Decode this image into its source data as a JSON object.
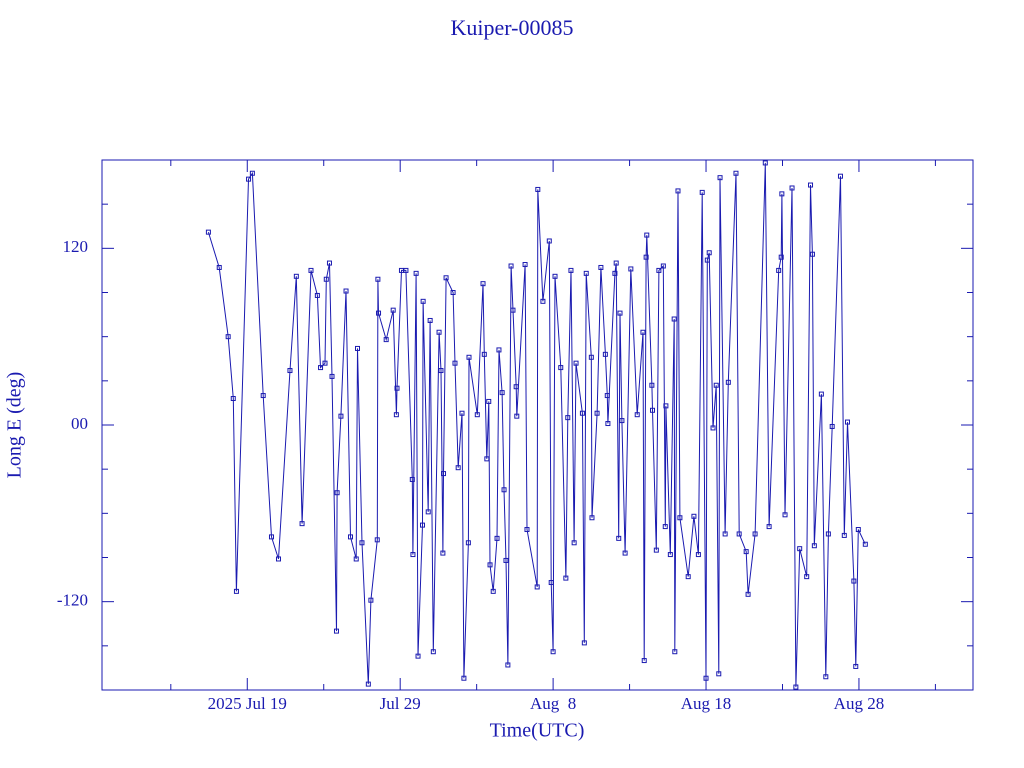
{
  "chart_data": {
    "type": "line",
    "title": "Kuiper-00085",
    "xlabel": "Time(UTC)",
    "ylabel": "Long E (deg)",
    "color": "#1a1ab0",
    "xlim": [
      "2025-07-09T12:00",
      "2025-09-04T11:00"
    ],
    "xticks": [
      {
        "value": "2025-07-19",
        "label": "2025 Jul 19"
      },
      {
        "value": "2025-07-29",
        "label": "Jul 29"
      },
      {
        "value": "2025-08-08",
        "label": "Aug  8"
      },
      {
        "value": "2025-08-18",
        "label": "Aug 18"
      },
      {
        "value": "2025-08-28",
        "label": "Aug 28"
      }
    ],
    "xminor": [
      "2025-07-14",
      "2025-07-24",
      "2025-08-03",
      "2025-08-13",
      "2025-08-23",
      "2025-09-02"
    ],
    "ylim": [
      -180,
      180
    ],
    "yticks": [
      -120,
      {
        "value": 0,
        "label": "00"
      },
      120
    ],
    "yminor": [
      -150,
      -90,
      -60,
      -30,
      30,
      60,
      90,
      150
    ],
    "x": [
      "2025-07-16T11:00",
      "2025-07-17T04:00",
      "2025-07-17T18:00",
      "2025-07-18T02:00",
      "2025-07-18T07:00",
      "2025-07-19T02:00",
      "2025-07-19T08:00",
      "2025-07-20T01:00",
      "2025-07-20T14:00",
      "2025-07-21T01:00",
      "2025-07-21T19:00",
      "2025-07-22T05:00",
      "2025-07-22T14:00",
      "2025-07-23T04:00",
      "2025-07-23T14:00",
      "2025-07-23T19:00",
      "2025-07-24T02:00",
      "2025-07-24T04:00",
      "2025-07-24T09:00",
      "2025-07-24T13:00",
      "2025-07-24T20:00",
      "2025-07-24T21:00",
      "2025-07-25T03:00",
      "2025-07-25T11:00",
      "2025-07-25T18:00",
      "2025-07-26T03:00",
      "2025-07-26T05:00",
      "2025-07-26T12:00",
      "2025-07-26T22:00",
      "2025-07-27T02:00",
      "2025-07-27T12:00",
      "2025-07-27T13:00",
      "2025-07-27T14:00",
      "2025-07-28T02:00",
      "2025-07-28T13:00",
      "2025-07-28T18:00",
      "2025-07-28T19:00",
      "2025-07-29T02:00",
      "2025-07-29T09:00",
      "2025-07-29T19:00",
      "2025-07-29T20:00",
      "2025-07-30T01:00",
      "2025-07-30T04:00",
      "2025-07-30T11:00",
      "2025-07-30T12:00",
      "2025-07-30T20:00",
      "2025-07-30T23:00",
      "2025-07-31T04:00",
      "2025-07-31T13:00",
      "2025-07-31T16:00",
      "2025-07-31T19:00",
      "2025-07-31T20:00",
      "2025-08-01T00:00",
      "2025-08-01T11:00",
      "2025-08-01T14:00",
      "2025-08-01T19:00",
      "2025-08-02T01:00",
      "2025-08-02T04:00",
      "2025-08-02T11:00",
      "2025-08-02T12:00",
      "2025-08-03T01:00",
      "2025-08-03T10:00",
      "2025-08-03T12:00",
      "2025-08-03T16:00",
      "2025-08-03T19:00",
      "2025-08-03T21:00",
      "2025-08-04T02:00",
      "2025-08-04T08:00",
      "2025-08-04T11:00",
      "2025-08-04T16:00",
      "2025-08-04T19:00",
      "2025-08-04T22:00",
      "2025-08-05T01:00",
      "2025-08-05T06:00",
      "2025-08-05T09:00",
      "2025-08-05T14:00",
      "2025-08-05T15:00",
      "2025-08-06T04:00",
      "2025-08-06T07:00",
      "2025-08-06T23:00",
      "2025-08-07T00:00",
      "2025-08-07T08:00",
      "2025-08-07T18:00",
      "2025-08-07T21:00",
      "2025-08-08T00:00",
      "2025-08-08T03:00",
      "2025-08-08T12:00",
      "2025-08-08T20:00",
      "2025-08-08T23:00",
      "2025-08-09T04:00",
      "2025-08-09T09:00",
      "2025-08-09T12:00",
      "2025-08-09T22:00",
      "2025-08-10T01:00",
      "2025-08-10T04:00",
      "2025-08-10T12:00",
      "2025-08-10T13:00",
      "2025-08-10T21:00",
      "2025-08-11T03:00",
      "2025-08-11T10:00",
      "2025-08-11T13:00",
      "2025-08-11T14:00",
      "2025-08-12T01:00",
      "2025-08-12T03:00",
      "2025-08-12T07:00",
      "2025-08-12T09:00",
      "2025-08-12T12:00",
      "2025-08-12T17:00",
      "2025-08-13T02:00",
      "2025-08-13T12:00",
      "2025-08-13T21:00",
      "2025-08-13T23:00",
      "2025-08-14T02:00",
      "2025-08-14T03:00",
      "2025-08-14T11:00",
      "2025-08-14T12:00",
      "2025-08-14T18:00",
      "2025-08-14T22:00",
      "2025-08-15T05:00",
      "2025-08-15T08:00",
      "2025-08-15T09:00",
      "2025-08-15T16:00",
      "2025-08-15T22:00",
      "2025-08-15T23:00",
      "2025-08-16T04:00",
      "2025-08-16T07:00",
      "2025-08-16T20:00",
      "2025-08-17T05:00",
      "2025-08-17T12:00",
      "2025-08-17T18:00",
      "2025-08-18T00:00",
      "2025-08-18T02:00",
      "2025-08-18T05:00",
      "2025-08-18T11:00",
      "2025-08-18T16:00",
      "2025-08-18T20:00",
      "2025-08-18T22:00",
      "2025-08-19T06:00",
      "2025-08-19T11:00",
      "2025-08-19T23:00",
      "2025-08-20T04:00",
      "2025-08-20T15:00",
      "2025-08-20T18:00",
      "2025-08-21T05:00",
      "2025-08-21T21:00",
      "2025-08-22T03:00",
      "2025-08-22T18:00",
      "2025-08-22T22:00",
      "2025-08-22T23:00",
      "2025-08-23T04:00",
      "2025-08-23T15:00",
      "2025-08-23T21:00",
      "2025-08-24T03:00",
      "2025-08-24T14:00",
      "2025-08-24T20:00",
      "2025-08-24T23:00",
      "2025-08-25T02:00",
      "2025-08-25T13:00",
      "2025-08-25T20:00",
      "2025-08-26T00:00",
      "2025-08-26T06:00",
      "2025-08-26T19:00",
      "2025-08-27T01:00",
      "2025-08-27T06:00",
      "2025-08-27T16:00",
      "2025-08-27T19:00",
      "2025-08-27T23:00",
      "2025-08-28T10:00"
    ],
    "values": [
      131,
      107,
      60,
      18,
      -113,
      167,
      171,
      20,
      -76,
      -91,
      37,
      101,
      -67,
      105,
      88,
      39,
      42,
      99,
      110,
      33,
      -140,
      -46,
      6,
      91,
      -76,
      -91,
      52,
      -80,
      -176,
      -119,
      -78,
      99,
      76,
      58,
      78,
      7,
      25,
      105,
      105,
      -37,
      -88,
      103,
      -157,
      -68,
      84,
      -59,
      71,
      -154,
      63,
      37,
      -87,
      -33,
      100,
      90,
      42,
      -29,
      8,
      -172,
      -80,
      46,
      7,
      96,
      48,
      -23,
      16,
      -95,
      -113,
      -77,
      51,
      22,
      -44,
      -92,
      -163,
      108,
      78,
      26,
      6,
      109,
      -71,
      -110,
      160,
      84,
      125,
      -107,
      -154,
      101,
      39,
      -104,
      5,
      105,
      -80,
      42,
      8,
      -148,
      103,
      46,
      -63,
      8,
      107,
      48,
      20,
      1,
      103,
      110,
      -77,
      76,
      3,
      -87,
      106,
      7,
      63,
      -160,
      114,
      129,
      27,
      10,
      -85,
      105,
      108,
      -69,
      13,
      -88,
      72,
      -154,
      159,
      -63,
      -103,
      -62,
      -88,
      158,
      -172,
      112,
      117,
      -2,
      27,
      -169,
      168,
      -74,
      29,
      171,
      -74,
      -86,
      -115,
      -74,
      178,
      -69,
      105,
      114,
      157,
      -61,
      161,
      -178,
      -84,
      -103,
      163,
      116,
      -82,
      21,
      -171,
      -74,
      -1,
      169,
      -75,
      2,
      -106,
      -164,
      -71,
      -81
    ]
  }
}
